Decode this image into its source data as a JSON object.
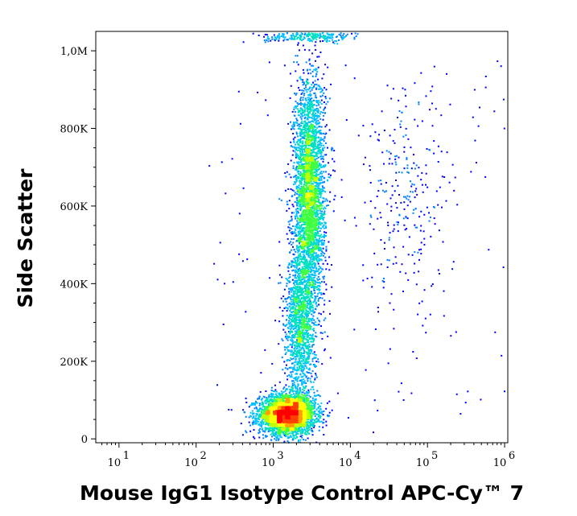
{
  "chart_data": {
    "type": "scatter",
    "style": "density-dot-plot",
    "xlabel": "Mouse IgG1 Isotype Control APC-Cy™ 7",
    "ylabel": "Side Scatter",
    "x_scale": "log",
    "xlim": [
      5,
      1100000
    ],
    "y_scale": "linear",
    "ylim": [
      -10000,
      1050000
    ],
    "x_ticks": [
      {
        "value": 10,
        "base": "10",
        "exp": "1"
      },
      {
        "value": 100,
        "base": "10",
        "exp": "2"
      },
      {
        "value": 1000,
        "base": "10",
        "exp": "3"
      },
      {
        "value": 10000,
        "base": "10",
        "exp": "4"
      },
      {
        "value": 100000,
        "base": "10",
        "exp": "5"
      },
      {
        "value": 1000000,
        "base": "10",
        "exp": "6"
      }
    ],
    "y_ticks": [
      {
        "value": 0,
        "label": "0"
      },
      {
        "value": 200000,
        "label": "200K"
      },
      {
        "value": 400000,
        "label": "400K"
      },
      {
        "value": 600000,
        "label": "600K"
      },
      {
        "value": 800000,
        "label": "800K"
      },
      {
        "value": 1000000,
        "label": "1,0M"
      }
    ],
    "grid": false,
    "legend": "none",
    "density_colors": [
      "#0000ff",
      "#0080ff",
      "#00c0ff",
      "#00e0c0",
      "#40ff40",
      "#c0ff00",
      "#ffff00",
      "#ffa000",
      "#ff4000",
      "#ff0000"
    ],
    "populations": [
      {
        "x_center": 1500,
        "y_center": 65000,
        "x_spread_decades": 0.18,
        "y_spread": 25000,
        "weight": 0.38
      },
      {
        "x_center": 2900,
        "y_center": 640000,
        "x_spread_decades": 0.1,
        "y_spread": 150000,
        "weight": 0.36
      },
      {
        "x_center": 2200,
        "y_center": 300000,
        "x_spread_decades": 0.1,
        "y_spread": 110000,
        "weight": 0.16
      },
      {
        "x_center": 50000,
        "y_center": 600000,
        "x_spread_decades": 0.3,
        "y_spread": 150000,
        "weight": 0.03
      },
      {
        "x_center": 3000,
        "y_center": 1040000,
        "x_spread_decades": 0.3,
        "y_spread": 8000,
        "weight": 0.03
      }
    ]
  }
}
